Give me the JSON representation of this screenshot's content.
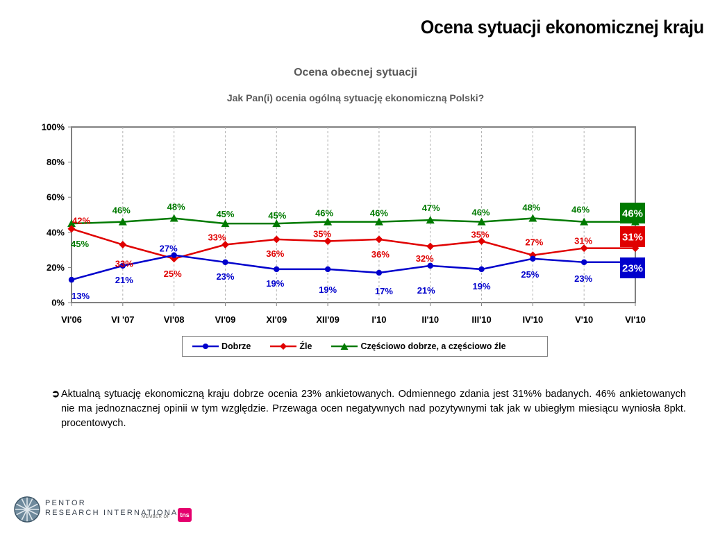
{
  "header": {
    "title": "Ocena sytuacji ekonomicznej kraju"
  },
  "chart_data": {
    "type": "line",
    "title": "Ocena  obecnej sytuacji",
    "subtitle": "Jak Pan(i) ocenia ogólną sytuację ekonomiczną Polski?",
    "categories": [
      "VI'06",
      "VI '07",
      "VI'08",
      "VI'09",
      "XI'09",
      "XII'09",
      "I'10",
      "II'10",
      "III'10",
      "IV'10",
      "V'10",
      "VI'10"
    ],
    "ylim": [
      0,
      100
    ],
    "yticks": [
      "0%",
      "20%",
      "40%",
      "60%",
      "80%",
      "100%"
    ],
    "grid": "vertical dashed",
    "legend_position": "bottom",
    "series": [
      {
        "name": "Dobrze",
        "color": "#0000cc",
        "marker": "circle",
        "values": [
          13,
          21,
          27,
          23,
          19,
          19,
          17,
          21,
          19,
          25,
          23,
          23
        ],
        "labels": [
          "13%",
          "21%",
          "27%",
          "23%",
          "19%",
          "19%",
          "17%",
          "21%",
          "19%",
          "25%",
          "23%",
          "23%"
        ]
      },
      {
        "name": "Źle",
        "color": "#e00000",
        "marker": "diamond",
        "values": [
          42,
          33,
          25,
          33,
          36,
          35,
          36,
          32,
          35,
          27,
          31,
          31
        ],
        "labels": [
          "42%",
          "33%",
          "25%",
          "33%",
          "36%",
          "35%",
          "36%",
          "32%",
          "35%",
          "27%",
          "31%",
          "31%"
        ]
      },
      {
        "name": "Częściowo dobrze, a częściowo źle",
        "color": "#007a00",
        "marker": "triangle",
        "values": [
          45,
          46,
          48,
          45,
          45,
          46,
          46,
          47,
          46,
          48,
          46,
          46
        ],
        "labels": [
          "45%",
          "46%",
          "48%",
          "45%",
          "45%",
          "46%",
          "46%",
          "47%",
          "46%",
          "48%",
          "46%",
          "46%"
        ]
      }
    ]
  },
  "note": {
    "bullet": "➲",
    "text": "Aktualną sytuację ekonomiczną kraju dobrze ocenia 23% ankietowanych. Odmiennego zdania jest 31%% badanych. 46% ankietowanych nie ma jednoznacznej opinii w tym względzie. Przewaga ocen negatywnych nad pozytywnymi tak jak w ubiegłym miesiącu wyniosła 8pkt. procentowych."
  },
  "logo": {
    "line1": "PENTOR",
    "line2": "RESEARCH  INTERNATIONAL",
    "member": "MEMBER OF",
    "brand": "tns"
  }
}
